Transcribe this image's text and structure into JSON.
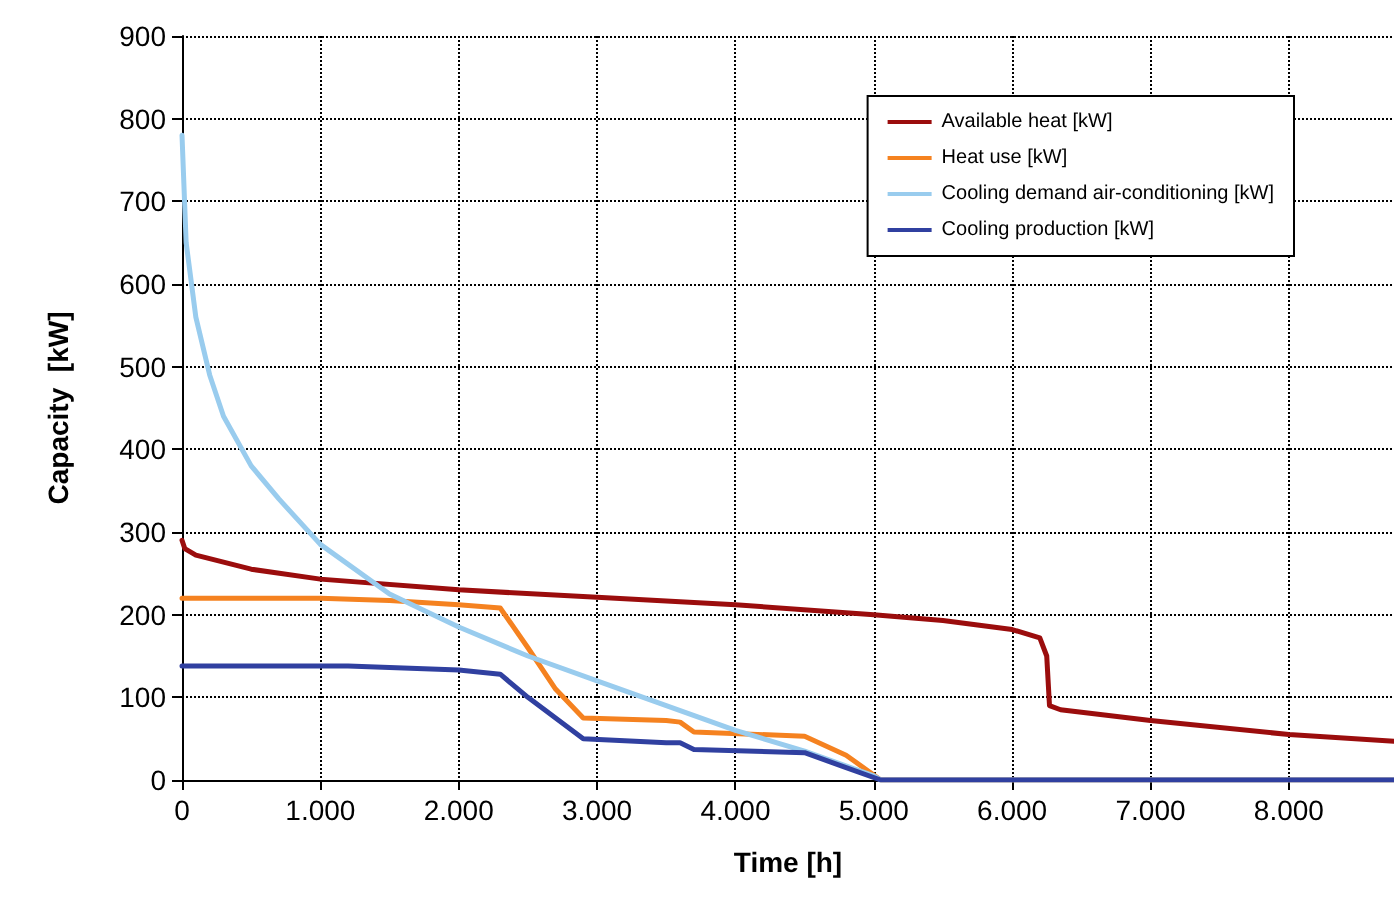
{
  "chart_data": {
    "type": "line",
    "xlabel": "Time [h]",
    "ylabel": "Capacity  [kW]",
    "xlim": [
      0,
      8760
    ],
    "ylim": [
      0,
      900
    ],
    "xticks": [
      0,
      {
        "value": 1000,
        "label": "1.000"
      },
      {
        "value": 2000,
        "label": "2.000"
      },
      {
        "value": 3000,
        "label": "3.000"
      },
      {
        "value": 4000,
        "label": "4.000"
      },
      {
        "value": 5000,
        "label": "5.000"
      },
      {
        "value": 6000,
        "label": "6.000"
      },
      {
        "value": 7000,
        "label": "7.000"
      },
      {
        "value": 8000,
        "label": "8.000"
      }
    ],
    "yticks": [
      0,
      100,
      200,
      300,
      400,
      500,
      600,
      700,
      800,
      900
    ],
    "grid": true,
    "legend": "top right",
    "marker": "none",
    "line_style": "solid",
    "series": [
      {
        "name": "Available heat [kW]",
        "color": "#9b0d0d",
        "x": [
          0,
          20,
          100,
          500,
          1000,
          2000,
          3000,
          4000,
          5000,
          5500,
          6000,
          6200,
          6250,
          6270,
          6350,
          7000,
          8000,
          8760
        ],
        "values": [
          290,
          280,
          272,
          255,
          243,
          230,
          221,
          212,
          200,
          193,
          182,
          172,
          150,
          90,
          85,
          72,
          55,
          47
        ]
      },
      {
        "name": "Heat use [kW]",
        "color": "#f58220",
        "x": [
          0,
          1000,
          1500,
          2000,
          2300,
          2500,
          2700,
          2900,
          3500,
          3600,
          3700,
          4500,
          4800,
          5050,
          8760
        ],
        "values": [
          220,
          220,
          217,
          212,
          208,
          160,
          110,
          75,
          72,
          70,
          58,
          53,
          30,
          0,
          0
        ]
      },
      {
        "name": "Cooling demand air-conditioning [kW]",
        "color": "#99ccee",
        "x": [
          0,
          30,
          100,
          200,
          300,
          500,
          700,
          1000,
          1500,
          2000,
          2500,
          3000,
          3500,
          4000,
          4500,
          5000,
          5050,
          8760
        ],
        "values": [
          780,
          650,
          560,
          490,
          440,
          380,
          340,
          285,
          225,
          185,
          150,
          120,
          90,
          60,
          35,
          5,
          0,
          0
        ]
      },
      {
        "name": "Cooling production [kW]",
        "color": "#3040a0",
        "x": [
          0,
          1200,
          2000,
          2300,
          2500,
          2900,
          3500,
          3600,
          3700,
          4500,
          4800,
          5050,
          8760
        ],
        "values": [
          138,
          138,
          133,
          128,
          100,
          50,
          45,
          45,
          37,
          33,
          15,
          0,
          0
        ]
      }
    ]
  }
}
